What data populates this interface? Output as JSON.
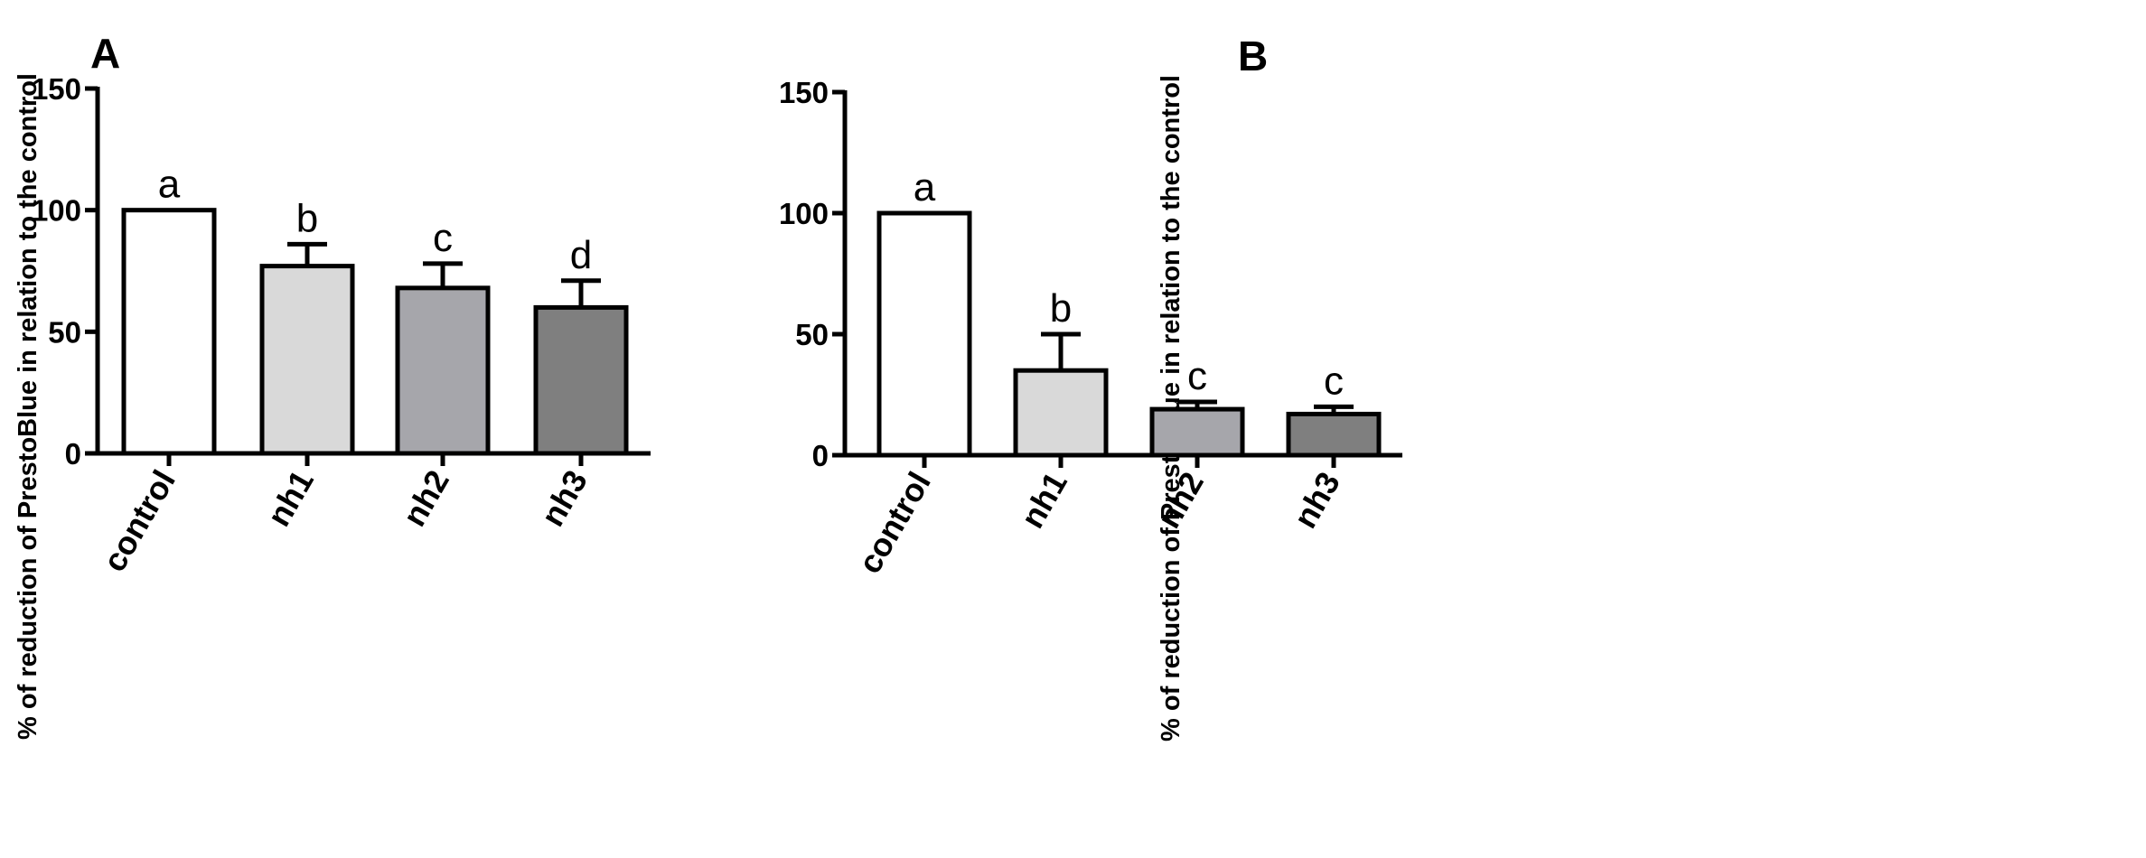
{
  "chart_data": [
    {
      "type": "bar",
      "panel": "A",
      "title": "",
      "xlabel": "",
      "ylabel": "% of reduction of PrestoBlue in relation to the control",
      "ylim": [
        0,
        150
      ],
      "yticks": [
        0,
        50,
        100,
        150
      ],
      "categories": [
        "control",
        "nh1",
        "nh2",
        "nh3"
      ],
      "values": [
        100,
        77,
        68,
        60
      ],
      "errors": [
        0,
        9,
        10,
        11
      ],
      "significance": [
        "a",
        "b",
        "c",
        "d"
      ],
      "bar_colors": [
        "#ffffff",
        "#d9d9d9",
        "#a6a6ab",
        "#7f7f7f"
      ]
    },
    {
      "type": "bar",
      "panel": "B",
      "title": "",
      "xlabel": "",
      "ylabel": "% of reduction of PrestoBlue in relation to the control",
      "ylim": [
        0,
        150
      ],
      "yticks": [
        0,
        50,
        100,
        150
      ],
      "categories": [
        "control",
        "nh1",
        "nh2",
        "nh3"
      ],
      "values": [
        100,
        35,
        19,
        17
      ],
      "errors": [
        0,
        15,
        3,
        3
      ],
      "significance": [
        "a",
        "b",
        "c",
        "c"
      ],
      "bar_colors": [
        "#ffffff",
        "#d9d9d9",
        "#a6a6ab",
        "#7f7f7f"
      ]
    }
  ]
}
